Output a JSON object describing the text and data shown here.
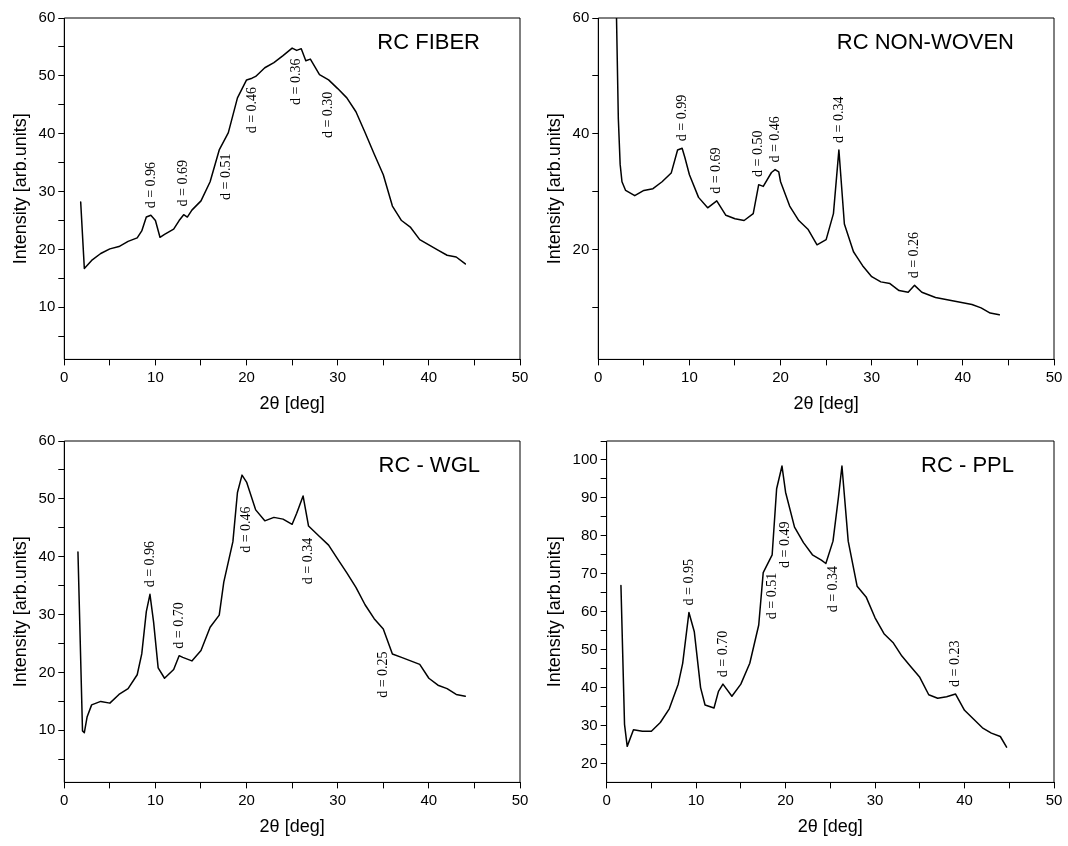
{
  "chart_data": [
    {
      "type": "line",
      "title": "RC FIBER",
      "xlabel": "2θ [deg]",
      "ylabel": "Intensity [arb.units]",
      "xlim": [
        0,
        50
      ],
      "ylim": [
        1,
        60
      ],
      "xticks": [
        0,
        {
          "value": 5,
          "label": null
        },
        10,
        {
          "value": 15,
          "label": null
        },
        20,
        {
          "value": 25,
          "label": null
        },
        30,
        {
          "value": 35,
          "label": null
        },
        40,
        {
          "value": 45,
          "label": null
        },
        50
      ],
      "yticks": [
        {
          "value": 5,
          "label": null
        },
        10,
        {
          "value": 15,
          "label": null
        },
        20,
        {
          "value": 25,
          "label": null
        },
        30,
        {
          "value": 35,
          "label": null
        },
        40,
        {
          "value": 45,
          "label": null
        },
        50,
        {
          "value": 55,
          "label": null
        },
        60
      ],
      "grid": false,
      "legend": false,
      "marker": "none",
      "line_style": "solid",
      "series": [
        {
          "color": "#000000",
          "x": [
            1.8,
            2.2,
            3,
            4,
            5,
            6,
            7,
            8,
            8.5,
            9,
            9.5,
            10,
            10.5,
            11,
            12,
            12.6,
            13.1,
            13.5,
            14,
            15,
            16,
            17,
            17.8,
            18,
            19,
            20,
            20.6,
            21,
            22,
            23,
            24,
            25,
            25.5,
            26,
            26.5,
            27,
            28,
            29,
            30,
            31,
            32,
            33,
            34,
            35,
            36,
            37,
            38,
            39,
            40,
            41,
            42,
            43,
            44
          ],
          "values": [
            28.2,
            16.7,
            18.1,
            19.3,
            20.1,
            20.5,
            21.4,
            22.0,
            23.2,
            25.6,
            25.9,
            25.0,
            22.1,
            22.6,
            23.5,
            25.0,
            26.0,
            25.6,
            26.8,
            28.4,
            31.7,
            37.2,
            39.6,
            40.2,
            46.2,
            49.3,
            49.6,
            49.9,
            51.4,
            52.3,
            53.5,
            54.8,
            54.4,
            54.7,
            52.6,
            52.9,
            50.2,
            49.3,
            47.8,
            46.2,
            43.8,
            40.2,
            36.5,
            32.9,
            27.5,
            25.0,
            23.8,
            21.7,
            20.8,
            19.9,
            19.0,
            18.7,
            17.5
          ]
        }
      ],
      "annotations": [
        {
          "text": "d = 0.96",
          "x": 9.5,
          "y": 25.9
        },
        {
          "text": "d = 0.69",
          "x": 13.1,
          "y": 26.0
        },
        {
          "text": "d = 0.51",
          "x": 17.8,
          "y": 39.6
        },
        {
          "text": "d = 0.46",
          "x": 20.6,
          "y": 49.6
        },
        {
          "text": "d = 0.36",
          "x": 25.5,
          "y": 54.4
        },
        {
          "text": "d = 0.30",
          "x": 29,
          "y": 49.3
        }
      ]
    },
    {
      "type": "line",
      "title": "RC NON-WOVEN",
      "xlabel": "2θ [deg]",
      "ylabel": "Intensity [arb.units]",
      "xlim": [
        0,
        50
      ],
      "ylim": [
        1,
        60
      ],
      "xticks": [
        0,
        {
          "value": 5,
          "label": null
        },
        10,
        {
          "value": 15,
          "label": null
        },
        20,
        {
          "value": 25,
          "label": null
        },
        30,
        {
          "value": 35,
          "label": null
        },
        40,
        {
          "value": 45,
          "label": null
        },
        50
      ],
      "yticks": [
        {
          "value": 10,
          "label": null
        },
        20,
        {
          "value": 30,
          "label": null
        },
        40,
        {
          "value": 50,
          "label": null
        },
        60
      ],
      "grid": false,
      "legend": false,
      "marker": "none",
      "line_style": "solid",
      "series": [
        {
          "color": "#000000",
          "x": [
            2.0,
            2.2,
            2.4,
            2.6,
            3,
            4,
            5,
            6,
            7,
            8,
            8.7,
            9.2,
            9.5,
            10,
            11,
            12,
            13,
            14,
            15,
            16,
            17,
            17.6,
            18.1,
            19,
            19.4,
            19.8,
            20,
            21,
            22,
            23,
            24,
            25,
            25.8,
            26.4,
            27,
            28,
            29,
            30,
            31,
            32,
            33,
            34,
            34.7,
            35.5,
            37,
            38,
            39,
            40,
            41,
            42,
            43,
            44
          ],
          "values": [
            60,
            42.6,
            34.7,
            31.7,
            30.2,
            29.3,
            30.2,
            30.5,
            31.7,
            33.2,
            37.2,
            37.5,
            35.9,
            32.9,
            29.0,
            27.2,
            28.4,
            25.9,
            25.3,
            25.0,
            26.2,
            31.2,
            30.9,
            33.3,
            33.8,
            33.4,
            31.7,
            27.5,
            25.0,
            23.5,
            20.8,
            21.7,
            26.2,
            37.2,
            24.4,
            19.6,
            17.2,
            15.3,
            14.4,
            14.1,
            12.9,
            12.6,
            13.8,
            12.6,
            11.7,
            11.4,
            11.1,
            10.8,
            10.5,
            9.9,
            9.0,
            8.7
          ]
        }
      ],
      "annotations": [
        {
          "text": "d = 0.99",
          "x": 9.2,
          "y": 37.5
        },
        {
          "text": "d = 0.69",
          "x": 13,
          "y": 28.4
        },
        {
          "text": "d = 0.50",
          "x": 17.6,
          "y": 31.2
        },
        {
          "text": "d = 0.46",
          "x": 19.4,
          "y": 33.8
        },
        {
          "text": "d = 0.34",
          "x": 26.4,
          "y": 37.2
        },
        {
          "text": "d = 0.26",
          "x": 34.7,
          "y": 13.8
        }
      ]
    },
    {
      "type": "line",
      "title": "RC - WGL",
      "xlabel": "2θ [deg]",
      "ylabel": "Intensity [arb.units]",
      "xlim": [
        0,
        50
      ],
      "ylim": [
        1,
        60
      ],
      "xticks": [
        0,
        {
          "value": 5,
          "label": null
        },
        10,
        {
          "value": 15,
          "label": null
        },
        20,
        {
          "value": 25,
          "label": null
        },
        30,
        {
          "value": 35,
          "label": null
        },
        40,
        {
          "value": 45,
          "label": null
        },
        50
      ],
      "yticks": [
        {
          "value": 5,
          "label": null
        },
        10,
        {
          "value": 15,
          "label": null
        },
        20,
        {
          "value": 25,
          "label": null
        },
        30,
        {
          "value": 35,
          "label": null
        },
        40,
        {
          "value": 45,
          "label": null
        },
        50,
        {
          "value": 55,
          "label": null
        },
        60
      ],
      "grid": false,
      "legend": false,
      "marker": "none",
      "line_style": "solid",
      "series": [
        {
          "color": "#000000",
          "x": [
            1.5,
            2.0,
            2.2,
            2.5,
            3,
            4,
            5,
            6,
            7,
            8,
            8.5,
            9,
            9.4,
            9.8,
            10.3,
            11,
            12,
            12.6,
            13,
            14,
            15,
            16,
            17,
            17.5,
            18.5,
            19,
            19.5,
            20,
            21,
            22,
            23,
            24,
            25,
            25.5,
            26.2,
            26.8,
            28,
            29,
            30,
            31,
            32,
            33,
            34,
            35,
            36,
            37,
            38,
            39,
            40,
            41,
            42,
            43,
            44
          ],
          "values": [
            40.8,
            9.9,
            9.6,
            12.3,
            14.4,
            15.0,
            14.7,
            16.2,
            17.2,
            19.6,
            23.2,
            30.5,
            33.5,
            28.7,
            20.8,
            19.0,
            20.5,
            22.9,
            22.6,
            22.0,
            23.8,
            27.8,
            29.9,
            35.6,
            42.6,
            51.1,
            54.1,
            52.9,
            48.1,
            46.2,
            46.8,
            46.5,
            45.6,
            47.5,
            50.5,
            45.3,
            43.5,
            42.0,
            39.6,
            37.2,
            34.7,
            31.7,
            29.3,
            27.5,
            23.2,
            22.6,
            22.0,
            21.4,
            19.0,
            17.8,
            17.2,
            16.2,
            15.9
          ]
        }
      ],
      "annotations": [
        {
          "text": "d = 0.96",
          "x": 9.4,
          "y": 33.5
        },
        {
          "text": "d = 0.70",
          "x": 12.6,
          "y": 22.9
        },
        {
          "text": "d = 0.46",
          "x": 20,
          "y": 52.9
        },
        {
          "text": "d = 0.34",
          "x": 26.8,
          "y": 45.3
        },
        {
          "text": "d = 0.25",
          "x": 35,
          "y": 27.5
        }
      ]
    },
    {
      "type": "line",
      "title": "RC - PPL",
      "xlabel": "2θ [deg]",
      "ylabel": "Intensity [arb.units]",
      "xlim": [
        0,
        50
      ],
      "ylim": [
        15,
        105
      ],
      "xticks": [
        0,
        {
          "value": 5,
          "label": null
        },
        10,
        {
          "value": 15,
          "label": null
        },
        20,
        {
          "value": 25,
          "label": null
        },
        30,
        {
          "value": 35,
          "label": null
        },
        40,
        {
          "value": 45,
          "label": null
        },
        50
      ],
      "yticks": [
        20,
        {
          "value": 25,
          "label": null
        },
        30,
        {
          "value": 35,
          "label": null
        },
        40,
        {
          "value": 45,
          "label": null
        },
        50,
        {
          "value": 55,
          "label": null
        },
        60,
        {
          "value": 65,
          "label": null
        },
        70,
        {
          "value": 75,
          "label": null
        },
        80,
        {
          "value": 85,
          "label": null
        },
        90,
        {
          "value": 95,
          "label": null
        },
        100,
        {
          "value": 105,
          "label": null
        }
      ],
      "grid": false,
      "legend": false,
      "marker": "none",
      "line_style": "solid",
      "series": [
        {
          "color": "#000000",
          "x": [
            1.6,
            2.0,
            2.3,
            3,
            4,
            5,
            6,
            7,
            8,
            8.5,
            9.2,
            9.8,
            10.5,
            11,
            12,
            12.5,
            13,
            14,
            15,
            16,
            17,
            17.5,
            18.5,
            19,
            19.6,
            20,
            21,
            22,
            23,
            24,
            24.5,
            25.3,
            25.9,
            26.3,
            27,
            28,
            29,
            30,
            31,
            32,
            33,
            34,
            35,
            36,
            37,
            38,
            39,
            40,
            41,
            42,
            43,
            44,
            44.7
          ],
          "values": [
            66.9,
            30.3,
            24.5,
            28.9,
            28.5,
            28.5,
            30.8,
            34.4,
            40.9,
            46.4,
            59.8,
            54.7,
            40.0,
            35.4,
            34.6,
            39.0,
            40.9,
            37.7,
            40.9,
            46.4,
            56.5,
            70.3,
            75.0,
            92.4,
            98.4,
            91.5,
            82.3,
            78.2,
            75.0,
            73.6,
            72.7,
            78.6,
            90.0,
            98.4,
            78.6,
            66.7,
            63.9,
            58.4,
            54.2,
            51.9,
            48.3,
            45.5,
            42.7,
            38.1,
            37.2,
            37.6,
            38.3,
            34.0,
            31.7,
            29.4,
            28.0,
            27.1,
            24.3
          ]
        }
      ],
      "annotations": [
        {
          "text": "d = 0.95",
          "x": 9.2,
          "y": 59.8
        },
        {
          "text": "d = 0.70",
          "x": 13,
          "y": 40.9
        },
        {
          "text": "d = 0.51",
          "x": 18.5,
          "y": 75.0
        },
        {
          "text": "d = 0.49",
          "x": 20,
          "y": 91.5
        },
        {
          "text": "d = 0.34",
          "x": 25.3,
          "y": 78.6
        },
        {
          "text": "d = 0.23",
          "x": 39,
          "y": 38.3
        }
      ]
    }
  ]
}
